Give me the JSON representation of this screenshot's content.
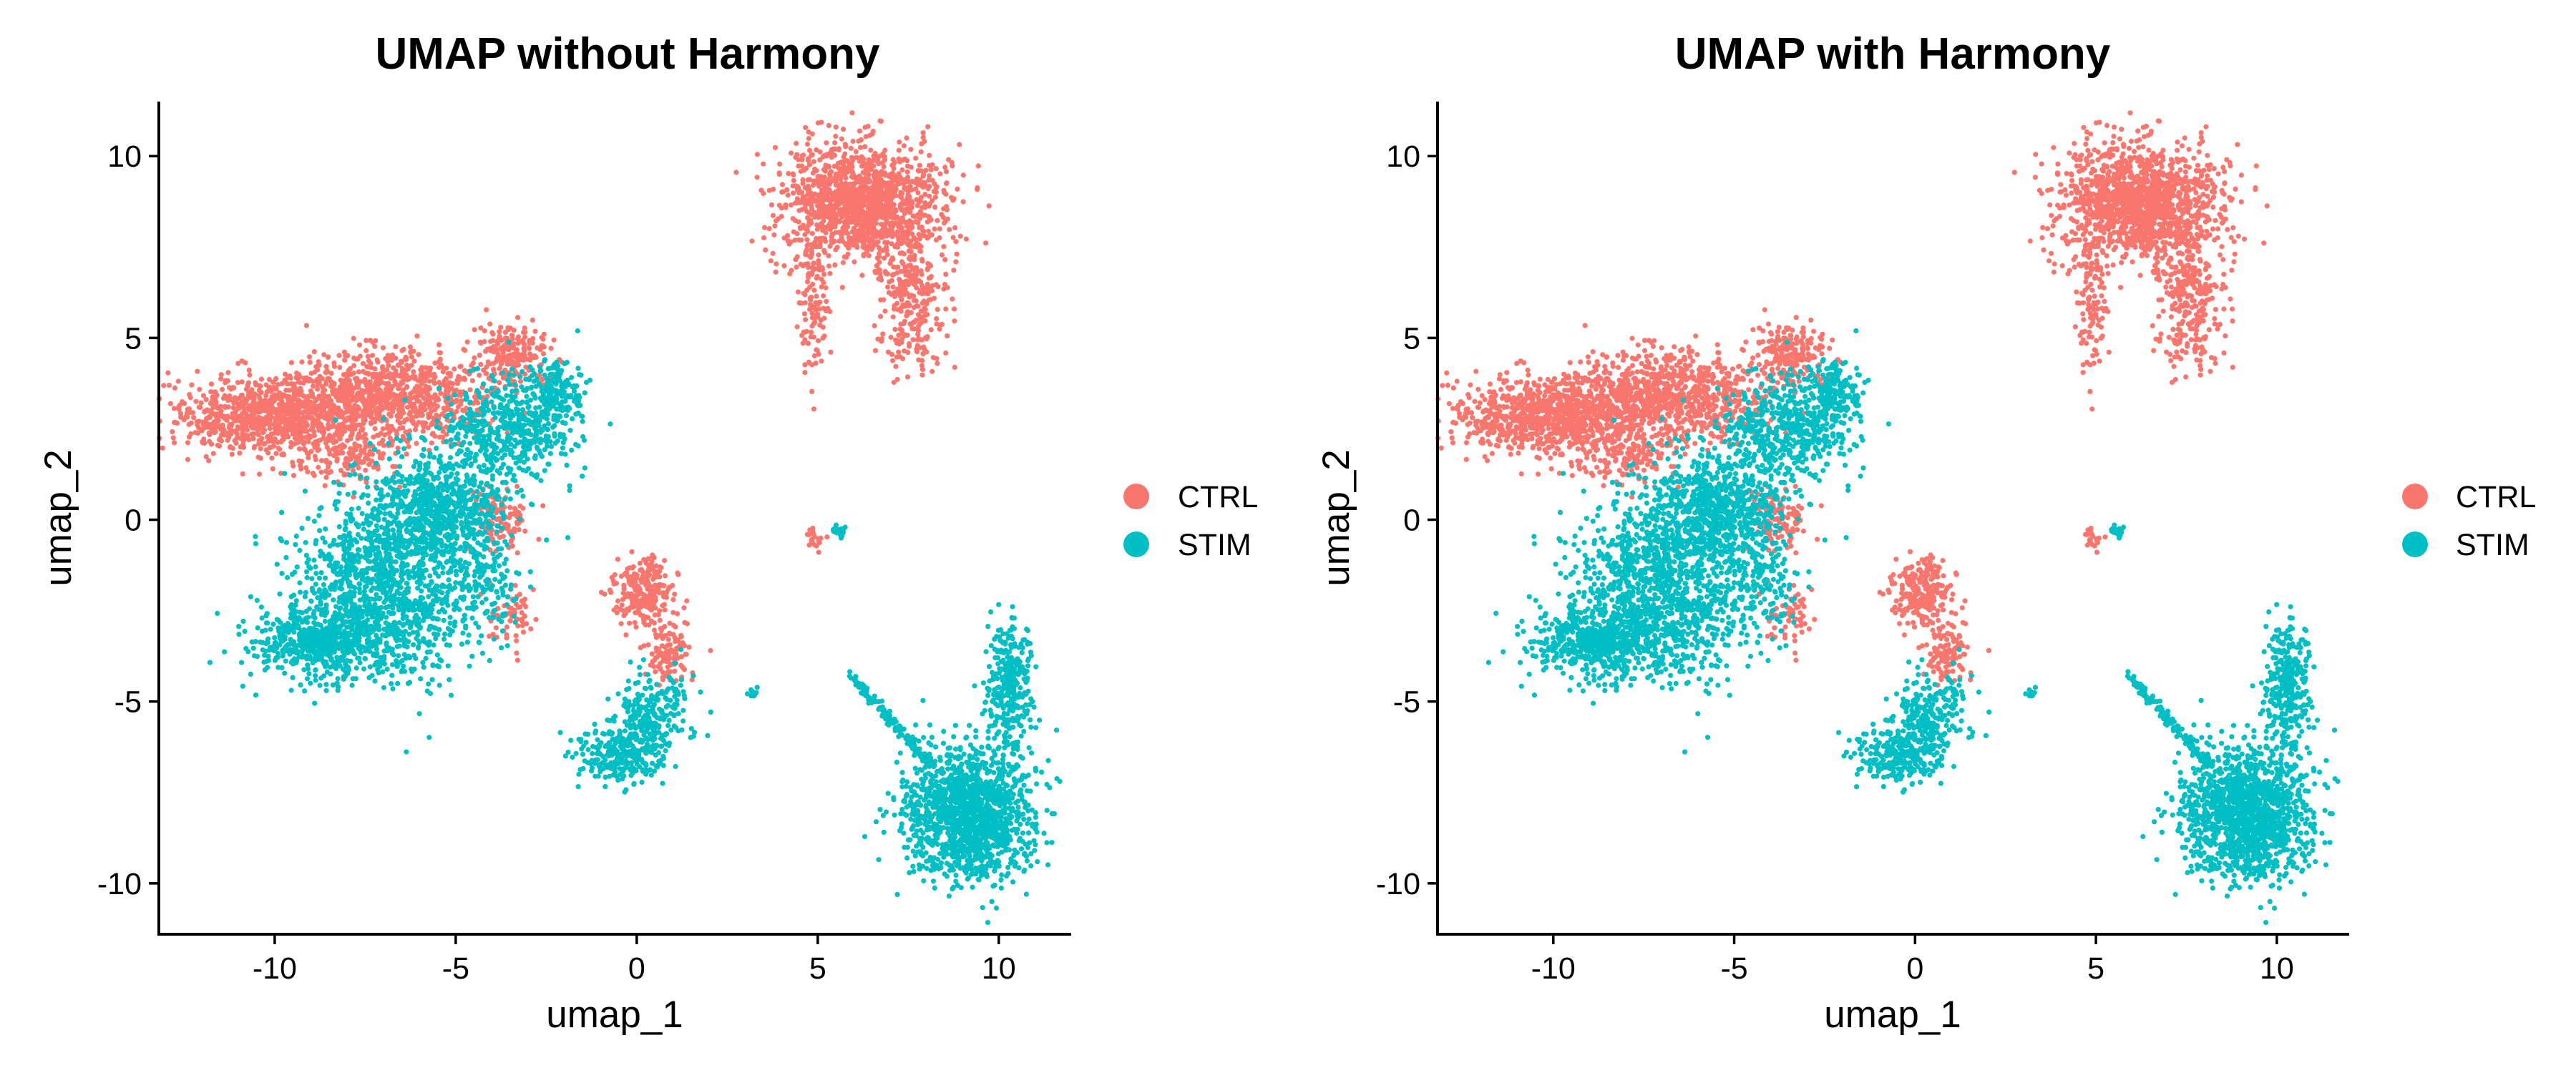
{
  "colors": {
    "CTRL": "#F8766D",
    "STIM": "#00BFC4"
  },
  "chart_data": [
    {
      "type": "scatter",
      "title": "UMAP without Harmony",
      "xlabel": "umap_1",
      "ylabel": "umap_2",
      "xlim": [
        -13.2,
        12.0
      ],
      "ylim": [
        -11.4,
        11.5
      ],
      "xticks": [
        -10,
        -5,
        0,
        5,
        10
      ],
      "xtick_labels": [
        "-10",
        "-5",
        "0",
        "5",
        "10"
      ],
      "yticks": [
        -10,
        -5,
        0,
        5,
        10
      ],
      "ytick_labels": [
        "-10",
        "-5",
        "0",
        "5",
        "10"
      ],
      "grid": false,
      "legend": {
        "position": "right",
        "entries": [
          "CTRL",
          "STIM"
        ]
      },
      "series": [
        {
          "name": "CTRL",
          "color": "#F8766D",
          "clusters": [
            {
              "cx": 6.2,
              "cy": 8.7,
              "sx": 1.1,
              "sy": 0.8,
              "n": 1400
            },
            {
              "cx": 7.6,
              "cy": 6.0,
              "sx": 0.5,
              "sy": 1.0,
              "n": 300
            },
            {
              "cx": 4.9,
              "cy": 6.2,
              "sx": 0.25,
              "sy": 1.1,
              "n": 130
            },
            {
              "cx": -10.0,
              "cy": 2.8,
              "sx": 1.4,
              "sy": 0.5,
              "n": 900
            },
            {
              "cx": -6.8,
              "cy": 3.4,
              "sx": 1.5,
              "sy": 0.6,
              "n": 900
            },
            {
              "cx": -3.4,
              "cy": 4.6,
              "sx": 0.5,
              "sy": 0.4,
              "n": 200
            },
            {
              "cx": -8.0,
              "cy": 1.7,
              "sx": 0.7,
              "sy": 0.4,
              "n": 150
            },
            {
              "cx": -3.8,
              "cy": 0.0,
              "sx": 0.4,
              "sy": 0.4,
              "n": 120
            },
            {
              "cx": 0.2,
              "cy": -2.0,
              "sx": 0.4,
              "sy": 0.5,
              "n": 260
            },
            {
              "cx": 0.9,
              "cy": -3.7,
              "sx": 0.3,
              "sy": 0.4,
              "n": 120
            },
            {
              "cx": -3.5,
              "cy": -2.6,
              "sx": 0.3,
              "sy": 0.4,
              "n": 60
            },
            {
              "cx": 4.9,
              "cy": -0.5,
              "sx": 0.12,
              "sy": 0.15,
              "n": 20
            }
          ]
        },
        {
          "name": "STIM",
          "color": "#00BFC4",
          "clusters": [
            {
              "cx": -7.0,
              "cy": -2.0,
              "sx": 1.2,
              "sy": 1.2,
              "n": 1200
            },
            {
              "cx": -8.8,
              "cy": -3.4,
              "sx": 0.9,
              "sy": 0.45,
              "n": 500
            },
            {
              "cx": -5.5,
              "cy": 0.3,
              "sx": 1.0,
              "sy": 0.9,
              "n": 800
            },
            {
              "cx": -3.5,
              "cy": 2.5,
              "sx": 0.9,
              "sy": 0.7,
              "n": 500
            },
            {
              "cx": -2.2,
              "cy": 3.5,
              "sx": 0.4,
              "sy": 0.5,
              "n": 180
            },
            {
              "cx": -4.2,
              "cy": -1.8,
              "sx": 0.4,
              "sy": 0.6,
              "n": 120
            },
            {
              "cx": -0.4,
              "cy": -6.4,
              "sx": 0.6,
              "sy": 0.4,
              "n": 300
            },
            {
              "cx": 0.5,
              "cy": -5.2,
              "sx": 0.5,
              "sy": 0.5,
              "n": 200
            },
            {
              "cx": 9.2,
              "cy": -8.1,
              "sx": 0.9,
              "sy": 0.9,
              "n": 1400
            },
            {
              "cx": 10.3,
              "cy": -4.5,
              "sx": 0.3,
              "sy": 0.9,
              "n": 300
            },
            {
              "cx": 3.2,
              "cy": -4.8,
              "sx": 0.08,
              "sy": 0.06,
              "n": 12
            },
            {
              "cx": 5.6,
              "cy": -0.3,
              "sx": 0.1,
              "sy": 0.12,
              "n": 20
            }
          ],
          "streaks": [
            {
              "x0": 5.9,
              "y0": -4.3,
              "x1": 8.2,
              "y1": -6.8,
              "n": 140
            }
          ]
        }
      ]
    },
    {
      "type": "scatter",
      "title": "UMAP with Harmony",
      "xlabel": "umap_1",
      "ylabel": "umap_2",
      "xlim": [
        -13.2,
        12.0
      ],
      "ylim": [
        -11.4,
        11.5
      ],
      "xticks": [
        -10,
        -5,
        0,
        5,
        10
      ],
      "xtick_labels": [
        "-10",
        "-5",
        "0",
        "5",
        "10"
      ],
      "yticks": [
        -10,
        -5,
        0,
        5,
        10
      ],
      "ytick_labels": [
        "-10",
        "-5",
        "0",
        "5",
        "10"
      ],
      "grid": false,
      "legend": {
        "position": "right",
        "entries": [
          "CTRL",
          "STIM"
        ]
      },
      "series": [
        {
          "name": "CTRL",
          "color": "#F8766D",
          "clusters": [
            {
              "cx": 6.2,
              "cy": 8.7,
              "sx": 1.1,
              "sy": 0.8,
              "n": 1400
            },
            {
              "cx": 7.6,
              "cy": 6.0,
              "sx": 0.5,
              "sy": 1.0,
              "n": 300
            },
            {
              "cx": 4.9,
              "cy": 6.2,
              "sx": 0.25,
              "sy": 1.1,
              "n": 130
            },
            {
              "cx": -10.0,
              "cy": 2.8,
              "sx": 1.4,
              "sy": 0.5,
              "n": 900
            },
            {
              "cx": -6.8,
              "cy": 3.4,
              "sx": 1.5,
              "sy": 0.6,
              "n": 900
            },
            {
              "cx": -3.4,
              "cy": 4.6,
              "sx": 0.5,
              "sy": 0.4,
              "n": 200
            },
            {
              "cx": -8.0,
              "cy": 1.7,
              "sx": 0.7,
              "sy": 0.4,
              "n": 150
            },
            {
              "cx": -3.8,
              "cy": 0.0,
              "sx": 0.4,
              "sy": 0.4,
              "n": 120
            },
            {
              "cx": 0.2,
              "cy": -2.0,
              "sx": 0.4,
              "sy": 0.5,
              "n": 260
            },
            {
              "cx": 0.9,
              "cy": -3.7,
              "sx": 0.3,
              "sy": 0.4,
              "n": 120
            },
            {
              "cx": -3.5,
              "cy": -2.6,
              "sx": 0.3,
              "sy": 0.4,
              "n": 60
            },
            {
              "cx": 4.9,
              "cy": -0.5,
              "sx": 0.12,
              "sy": 0.15,
              "n": 20
            }
          ]
        },
        {
          "name": "STIM",
          "color": "#00BFC4",
          "clusters": [
            {
              "cx": -7.0,
              "cy": -2.0,
              "sx": 1.2,
              "sy": 1.2,
              "n": 1200
            },
            {
              "cx": -8.8,
              "cy": -3.4,
              "sx": 0.9,
              "sy": 0.45,
              "n": 500
            },
            {
              "cx": -5.5,
              "cy": 0.3,
              "sx": 1.0,
              "sy": 0.9,
              "n": 800
            },
            {
              "cx": -3.5,
              "cy": 2.5,
              "sx": 0.9,
              "sy": 0.7,
              "n": 500
            },
            {
              "cx": -2.2,
              "cy": 3.5,
              "sx": 0.4,
              "sy": 0.5,
              "n": 180
            },
            {
              "cx": -4.2,
              "cy": -1.8,
              "sx": 0.4,
              "sy": 0.6,
              "n": 120
            },
            {
              "cx": -0.4,
              "cy": -6.4,
              "sx": 0.6,
              "sy": 0.4,
              "n": 300
            },
            {
              "cx": 0.5,
              "cy": -5.2,
              "sx": 0.5,
              "sy": 0.5,
              "n": 200
            },
            {
              "cx": 9.2,
              "cy": -8.1,
              "sx": 0.9,
              "sy": 0.9,
              "n": 1400
            },
            {
              "cx": 10.3,
              "cy": -4.5,
              "sx": 0.3,
              "sy": 0.9,
              "n": 300
            },
            {
              "cx": 3.2,
              "cy": -4.8,
              "sx": 0.08,
              "sy": 0.06,
              "n": 12
            },
            {
              "cx": 5.6,
              "cy": -0.3,
              "sx": 0.1,
              "sy": 0.12,
              "n": 20
            }
          ],
          "streaks": [
            {
              "x0": 5.9,
              "y0": -4.3,
              "x1": 8.2,
              "y1": -6.8,
              "n": 140
            }
          ]
        }
      ]
    }
  ]
}
